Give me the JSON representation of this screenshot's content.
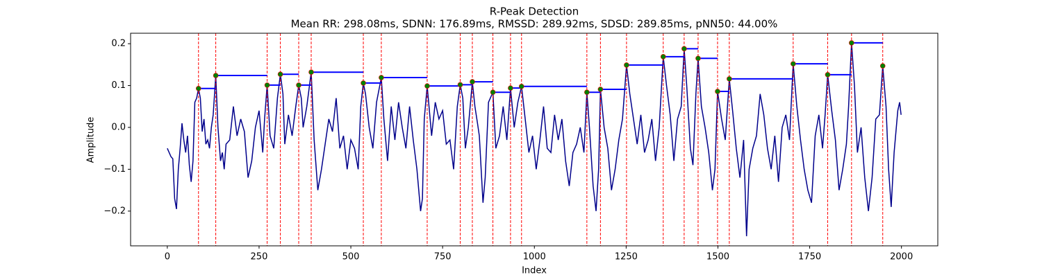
{
  "chart_data": {
    "type": "line",
    "title": "R-Peak Detection",
    "subtitle": "Mean RR: 298.08ms, SDNN: 176.89ms, RMSSD: 289.92ms, SDSD: 289.85ms, pNN50: 44.00%",
    "x_label": "Index",
    "y_label": "Amplitude",
    "xlim": [
      -100,
      2099
    ],
    "ylim": [
      -0.283,
      0.225
    ],
    "xticks": [
      0,
      250,
      500,
      750,
      1000,
      1250,
      1500,
      1750,
      2000
    ],
    "yticks": [
      {
        "value": -0.2,
        "label": "−0.2"
      },
      {
        "value": -0.1,
        "label": "−0.1"
      },
      {
        "value": 0,
        "label": "0.0"
      },
      0.1,
      0.2
    ],
    "signal": {
      "color": "#00008b",
      "x": [
        0,
        10,
        15,
        20,
        25,
        30,
        35,
        40,
        45,
        50,
        55,
        60,
        65,
        70,
        75,
        80,
        85,
        90,
        95,
        100,
        105,
        110,
        115,
        120,
        125,
        132,
        138,
        145,
        150,
        155,
        160,
        170,
        180,
        190,
        200,
        210,
        220,
        230,
        240,
        250,
        260,
        265,
        272,
        280,
        290,
        300,
        308,
        315,
        320,
        330,
        340,
        350,
        358,
        365,
        370,
        380,
        392,
        400,
        410,
        420,
        430,
        440,
        450,
        460,
        470,
        480,
        490,
        500,
        510,
        520,
        527,
        534,
        540,
        550,
        560,
        570,
        583,
        590,
        600,
        610,
        620,
        630,
        640,
        650,
        660,
        670,
        680,
        690,
        695,
        700,
        708,
        715,
        720,
        730,
        740,
        750,
        760,
        770,
        780,
        790,
        798,
        805,
        812,
        820,
        831,
        838,
        845,
        850,
        860,
        866,
        875,
        887,
        895,
        905,
        915,
        925,
        935,
        945,
        955,
        965,
        975,
        985,
        995,
        1005,
        1015,
        1025,
        1035,
        1045,
        1055,
        1065,
        1075,
        1085,
        1095,
        1105,
        1115,
        1125,
        1135,
        1143,
        1150,
        1160,
        1168,
        1175,
        1180,
        1190,
        1200,
        1210,
        1220,
        1230,
        1240,
        1251,
        1260,
        1270,
        1280,
        1290,
        1300,
        1310,
        1320,
        1330,
        1340,
        1351,
        1360,
        1370,
        1380,
        1390,
        1400,
        1408,
        1415,
        1425,
        1432,
        1440,
        1446,
        1455,
        1465,
        1475,
        1485,
        1492,
        1499,
        1510,
        1520,
        1531,
        1540,
        1550,
        1560,
        1570,
        1578,
        1585,
        1595,
        1605,
        1615,
        1625,
        1635,
        1645,
        1655,
        1665,
        1675,
        1685,
        1695,
        1705,
        1715,
        1725,
        1735,
        1745,
        1755,
        1765,
        1775,
        1785,
        1792,
        1799,
        1810,
        1820,
        1830,
        1840,
        1850,
        1856,
        1864,
        1872,
        1880,
        1890,
        1900,
        1910,
        1920,
        1930,
        1940,
        1949,
        1958,
        1965,
        1972,
        1980,
        1990,
        1995,
        1999
      ],
      "values": [
        -0.05,
        -0.07,
        -0.075,
        -0.17,
        -0.195,
        -0.1,
        -0.05,
        0.01,
        -0.03,
        -0.06,
        -0.02,
        -0.09,
        -0.13,
        -0.08,
        0.06,
        0.07,
        0.093,
        0.07,
        -0.01,
        0.02,
        -0.04,
        -0.03,
        -0.05,
        0.0,
        0.03,
        0.124,
        0.0,
        -0.08,
        -0.06,
        -0.1,
        -0.04,
        -0.03,
        0.05,
        -0.02,
        0.02,
        -0.01,
        -0.12,
        -0.08,
        0.0,
        0.04,
        -0.06,
        0.02,
        0.101,
        -0.02,
        -0.05,
        0.07,
        0.127,
        0.08,
        -0.04,
        0.03,
        -0.02,
        0.05,
        0.101,
        0.07,
        0.0,
        0.05,
        0.132,
        -0.03,
        -0.15,
        -0.1,
        -0.04,
        0.02,
        -0.01,
        0.07,
        -0.05,
        -0.02,
        -0.1,
        -0.03,
        -0.05,
        -0.1,
        0.05,
        0.106,
        0.08,
        0.0,
        -0.05,
        0.06,
        0.119,
        0.02,
        -0.08,
        0.05,
        -0.03,
        0.06,
        0.0,
        -0.05,
        0.05,
        -0.03,
        -0.1,
        -0.2,
        -0.17,
        0.02,
        0.099,
        0.03,
        -0.02,
        0.06,
        0.02,
        0.04,
        -0.04,
        -0.03,
        -0.1,
        0.05,
        0.102,
        0.07,
        -0.05,
        0.0,
        0.109,
        0.05,
        0.01,
        -0.02,
        -0.18,
        -0.12,
        0.06,
        0.084,
        -0.05,
        -0.02,
        0.05,
        -0.03,
        0.094,
        0.0,
        0.06,
        0.098,
        0.02,
        -0.06,
        -0.02,
        -0.1,
        -0.03,
        0.05,
        -0.05,
        -0.06,
        0.03,
        -0.03,
        0.02,
        -0.08,
        -0.14,
        -0.06,
        -0.04,
        0.0,
        -0.06,
        0.084,
        0.0,
        -0.14,
        -0.2,
        -0.1,
        0.091,
        0.0,
        -0.05,
        -0.15,
        -0.1,
        -0.03,
        0.02,
        0.149,
        0.08,
        0.02,
        -0.04,
        0.03,
        -0.06,
        -0.03,
        0.02,
        -0.08,
        0.0,
        0.169,
        0.1,
        0.03,
        -0.08,
        0.02,
        0.05,
        0.188,
        0.1,
        -0.05,
        -0.09,
        0.08,
        0.165,
        0.05,
        0.0,
        -0.06,
        -0.15,
        -0.1,
        0.086,
        0.02,
        -0.03,
        0.116,
        0.04,
        -0.05,
        -0.12,
        -0.03,
        -0.26,
        -0.1,
        -0.05,
        -0.02,
        0.08,
        0.03,
        -0.05,
        -0.1,
        -0.02,
        -0.13,
        0.0,
        0.03,
        -0.03,
        0.152,
        0.05,
        -0.03,
        -0.1,
        -0.15,
        -0.18,
        -0.02,
        0.03,
        -0.05,
        0.03,
        0.126,
        0.04,
        -0.03,
        -0.15,
        -0.1,
        -0.04,
        0.05,
        0.202,
        0.1,
        -0.06,
        0.0,
        -0.12,
        -0.2,
        -0.12,
        0.02,
        0.03,
        0.147,
        0.05,
        -0.1,
        -0.19,
        -0.06,
        0.04,
        0.06,
        0.03
      ]
    },
    "peaks": {
      "color": "#008000",
      "line_color": "#ff0000",
      "rr_color": "#0000ff",
      "x": [
        85,
        132,
        272,
        308,
        358,
        392,
        534,
        583,
        708,
        798,
        831,
        887,
        935,
        965,
        1143,
        1180,
        1251,
        1351,
        1408,
        1446,
        1499,
        1531,
        1705,
        1799,
        1864,
        1949
      ],
      "values": [
        0.093,
        0.124,
        0.101,
        0.127,
        0.101,
        0.132,
        0.106,
        0.119,
        0.099,
        0.102,
        0.109,
        0.084,
        0.094,
        0.098,
        0.084,
        0.091,
        0.149,
        0.169,
        0.188,
        0.165,
        0.086,
        0.116,
        0.152,
        0.126,
        0.202,
        0.147
      ]
    }
  }
}
